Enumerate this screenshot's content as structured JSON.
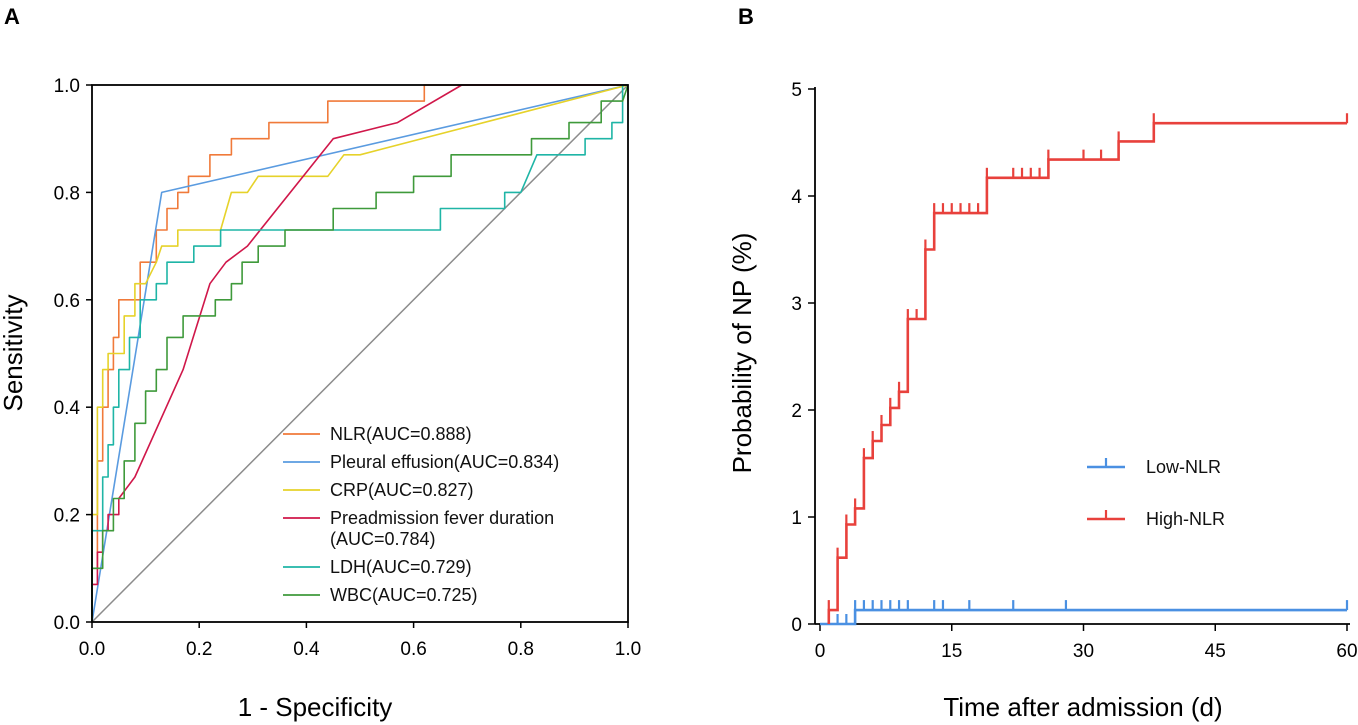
{
  "chart_data": [
    {
      "panel": "A",
      "type": "line",
      "xlabel": "1 -  Specificity",
      "ylabel": "Sensitivity",
      "xlim": [
        0,
        1
      ],
      "ylim": [
        0,
        1
      ],
      "xticks": [
        "0.0",
        "0.2",
        "0.4",
        "0.6",
        "0.8",
        "1.0"
      ],
      "yticks": [
        "0.0",
        "0.2",
        "0.4",
        "0.6",
        "0.8",
        "1.0"
      ],
      "legend_position": "bottom-right",
      "reference_line": {
        "from": [
          0,
          0
        ],
        "to": [
          1,
          1
        ],
        "color": "#8c8c8c"
      },
      "series": [
        {
          "name": "NLR(AUC=0.888)",
          "color": "#f07a3a",
          "points": [
            [
              0,
              0
            ],
            [
              0,
              0.1
            ],
            [
              0.01,
              0.1
            ],
            [
              0.01,
              0.3
            ],
            [
              0.02,
              0.3
            ],
            [
              0.02,
              0.4
            ],
            [
              0.03,
              0.4
            ],
            [
              0.03,
              0.47
            ],
            [
              0.04,
              0.47
            ],
            [
              0.04,
              0.53
            ],
            [
              0.05,
              0.53
            ],
            [
              0.05,
              0.6
            ],
            [
              0.09,
              0.6
            ],
            [
              0.09,
              0.67
            ],
            [
              0.12,
              0.67
            ],
            [
              0.12,
              0.73
            ],
            [
              0.14,
              0.73
            ],
            [
              0.14,
              0.77
            ],
            [
              0.16,
              0.77
            ],
            [
              0.16,
              0.8
            ],
            [
              0.18,
              0.8
            ],
            [
              0.18,
              0.83
            ],
            [
              0.22,
              0.83
            ],
            [
              0.22,
              0.87
            ],
            [
              0.26,
              0.87
            ],
            [
              0.26,
              0.9
            ],
            [
              0.33,
              0.9
            ],
            [
              0.33,
              0.93
            ],
            [
              0.44,
              0.93
            ],
            [
              0.44,
              0.97
            ],
            [
              0.62,
              0.97
            ],
            [
              0.62,
              1.0
            ],
            [
              0.72,
              1.0
            ],
            [
              0.72,
              1.0
            ],
            [
              1,
              1
            ]
          ]
        },
        {
          "name": "Pleural effusion(AUC=0.834)",
          "color": "#5a9be0",
          "points": [
            [
              0,
              0
            ],
            [
              0.13,
              0.8
            ],
            [
              1,
              1
            ]
          ]
        },
        {
          "name": "CRP(AUC=0.827)",
          "color": "#e6d22a",
          "points": [
            [
              0,
              0
            ],
            [
              0,
              0.2
            ],
            [
              0.01,
              0.2
            ],
            [
              0.01,
              0.4
            ],
            [
              0.02,
              0.4
            ],
            [
              0.02,
              0.47
            ],
            [
              0.03,
              0.47
            ],
            [
              0.03,
              0.5
            ],
            [
              0.06,
              0.5
            ],
            [
              0.06,
              0.57
            ],
            [
              0.08,
              0.57
            ],
            [
              0.08,
              0.63
            ],
            [
              0.1,
              0.63
            ],
            [
              0.12,
              0.67
            ],
            [
              0.13,
              0.7
            ],
            [
              0.16,
              0.7
            ],
            [
              0.16,
              0.73
            ],
            [
              0.2,
              0.73
            ],
            [
              0.24,
              0.73
            ],
            [
              0.26,
              0.8
            ],
            [
              0.29,
              0.8
            ],
            [
              0.31,
              0.83
            ],
            [
              0.44,
              0.83
            ],
            [
              0.47,
              0.87
            ],
            [
              0.5,
              0.87
            ],
            [
              1,
              1
            ]
          ]
        },
        {
          "name": "Preadmission fever duration\n(AUC=0.784)",
          "color": "#d0174a",
          "points": [
            [
              0,
              0
            ],
            [
              0,
              0.07
            ],
            [
              0.01,
              0.07
            ],
            [
              0.01,
              0.13
            ],
            [
              0.02,
              0.13
            ],
            [
              0.02,
              0.17
            ],
            [
              0.03,
              0.17
            ],
            [
              0.03,
              0.2
            ],
            [
              0.05,
              0.2
            ],
            [
              0.05,
              0.23
            ],
            [
              0.08,
              0.27
            ],
            [
              0.17,
              0.47
            ],
            [
              0.22,
              0.63
            ],
            [
              0.25,
              0.67
            ],
            [
              0.29,
              0.7
            ],
            [
              0.45,
              0.9
            ],
            [
              0.57,
              0.93
            ],
            [
              0.69,
              1.0
            ],
            [
              1,
              1
            ]
          ]
        },
        {
          "name": "LDH(AUC=0.729)",
          "color": "#1fb5a6",
          "points": [
            [
              0,
              0
            ],
            [
              0,
              0.17
            ],
            [
              0.02,
              0.17
            ],
            [
              0.02,
              0.27
            ],
            [
              0.03,
              0.27
            ],
            [
              0.03,
              0.33
            ],
            [
              0.04,
              0.33
            ],
            [
              0.04,
              0.4
            ],
            [
              0.05,
              0.4
            ],
            [
              0.05,
              0.47
            ],
            [
              0.07,
              0.47
            ],
            [
              0.07,
              0.53
            ],
            [
              0.09,
              0.53
            ],
            [
              0.09,
              0.6
            ],
            [
              0.12,
              0.6
            ],
            [
              0.12,
              0.63
            ],
            [
              0.14,
              0.63
            ],
            [
              0.14,
              0.67
            ],
            [
              0.19,
              0.67
            ],
            [
              0.19,
              0.7
            ],
            [
              0.24,
              0.7
            ],
            [
              0.24,
              0.73
            ],
            [
              0.65,
              0.73
            ],
            [
              0.65,
              0.77
            ],
            [
              0.77,
              0.77
            ],
            [
              0.77,
              0.8
            ],
            [
              0.8,
              0.8
            ],
            [
              0.83,
              0.87
            ],
            [
              0.92,
              0.87
            ],
            [
              0.92,
              0.9
            ],
            [
              0.97,
              0.9
            ],
            [
              0.97,
              0.93
            ],
            [
              0.99,
              0.93
            ],
            [
              0.99,
              1.0
            ],
            [
              1,
              1
            ]
          ]
        },
        {
          "name": "WBC(AUC=0.725)",
          "color": "#3f9a3b",
          "points": [
            [
              0,
              0
            ],
            [
              0,
              0.1
            ],
            [
              0.02,
              0.1
            ],
            [
              0.02,
              0.17
            ],
            [
              0.04,
              0.17
            ],
            [
              0.04,
              0.23
            ],
            [
              0.06,
              0.23
            ],
            [
              0.06,
              0.3
            ],
            [
              0.08,
              0.3
            ],
            [
              0.08,
              0.37
            ],
            [
              0.1,
              0.37
            ],
            [
              0.1,
              0.43
            ],
            [
              0.12,
              0.43
            ],
            [
              0.12,
              0.47
            ],
            [
              0.14,
              0.47
            ],
            [
              0.14,
              0.53
            ],
            [
              0.17,
              0.53
            ],
            [
              0.17,
              0.57
            ],
            [
              0.23,
              0.57
            ],
            [
              0.23,
              0.6
            ],
            [
              0.26,
              0.6
            ],
            [
              0.26,
              0.63
            ],
            [
              0.28,
              0.63
            ],
            [
              0.28,
              0.67
            ],
            [
              0.31,
              0.67
            ],
            [
              0.31,
              0.7
            ],
            [
              0.36,
              0.7
            ],
            [
              0.36,
              0.73
            ],
            [
              0.45,
              0.73
            ],
            [
              0.45,
              0.77
            ],
            [
              0.53,
              0.77
            ],
            [
              0.53,
              0.8
            ],
            [
              0.6,
              0.8
            ],
            [
              0.6,
              0.83
            ],
            [
              0.67,
              0.83
            ],
            [
              0.67,
              0.87
            ],
            [
              0.82,
              0.87
            ],
            [
              0.82,
              0.9
            ],
            [
              0.89,
              0.9
            ],
            [
              0.89,
              0.93
            ],
            [
              0.95,
              0.93
            ],
            [
              0.95,
              0.97
            ],
            [
              0.99,
              0.97
            ],
            [
              1,
              1
            ]
          ]
        }
      ]
    },
    {
      "panel": "B",
      "type": "line",
      "xlabel": "Time after admission (d)",
      "ylabel": "Probability of NP (%)",
      "xlim": [
        0,
        60
      ],
      "ylim": [
        0,
        5
      ],
      "xticks": [
        "0",
        "15",
        "30",
        "45",
        "60"
      ],
      "yticks": [
        "0",
        "1",
        "2",
        "3",
        "4",
        "5"
      ],
      "legend_position": "center-right",
      "series": [
        {
          "name": "Low-NLR",
          "color": "#4a90e2",
          "steps": [
            [
              0,
              0
            ],
            [
              4,
              0
            ],
            [
              4,
              0.13
            ],
            [
              60,
              0.13
            ]
          ],
          "censor": [
            [
              2,
              0
            ],
            [
              3,
              0
            ],
            [
              4,
              0.13
            ],
            [
              5,
              0.13
            ],
            [
              6,
              0.13
            ],
            [
              7,
              0.13
            ],
            [
              8,
              0.13
            ],
            [
              9,
              0.13
            ],
            [
              10,
              0.13
            ],
            [
              13,
              0.13
            ],
            [
              14,
              0.13
            ],
            [
              17,
              0.13
            ],
            [
              22,
              0.13
            ],
            [
              28,
              0.13
            ],
            [
              60,
              0.13
            ]
          ]
        },
        {
          "name": "High-NLR",
          "color": "#e8413c",
          "steps": [
            [
              1,
              0
            ],
            [
              1,
              0.13
            ],
            [
              2,
              0.13
            ],
            [
              2,
              0.62
            ],
            [
              3,
              0.62
            ],
            [
              3,
              0.93
            ],
            [
              4,
              0.93
            ],
            [
              4,
              1.08
            ],
            [
              5,
              1.08
            ],
            [
              5,
              1.55
            ],
            [
              6,
              1.55
            ],
            [
              6,
              1.71
            ],
            [
              7,
              1.71
            ],
            [
              7,
              1.86
            ],
            [
              8,
              1.86
            ],
            [
              8,
              2.02
            ],
            [
              9,
              2.02
            ],
            [
              9,
              2.17
            ],
            [
              10,
              2.17
            ],
            [
              10,
              2.85
            ],
            [
              12,
              2.85
            ],
            [
              12,
              3.5
            ],
            [
              13,
              3.5
            ],
            [
              13,
              3.84
            ],
            [
              19,
              3.84
            ],
            [
              19,
              4.17
            ],
            [
              26,
              4.17
            ],
            [
              26,
              4.34
            ],
            [
              34,
              4.34
            ],
            [
              34,
              4.51
            ],
            [
              38,
              4.51
            ],
            [
              38,
              4.68
            ],
            [
              60,
              4.68
            ]
          ],
          "censor": [
            [
              1,
              0.13
            ],
            [
              2,
              0.62
            ],
            [
              3,
              0.93
            ],
            [
              4,
              1.08
            ],
            [
              5,
              1.55
            ],
            [
              6,
              1.71
            ],
            [
              7,
              1.86
            ],
            [
              8,
              2.02
            ],
            [
              9,
              2.17
            ],
            [
              10,
              2.85
            ],
            [
              11,
              2.85
            ],
            [
              12,
              3.5
            ],
            [
              13,
              3.84
            ],
            [
              14,
              3.84
            ],
            [
              15,
              3.84
            ],
            [
              16,
              3.84
            ],
            [
              17,
              3.84
            ],
            [
              18,
              3.84
            ],
            [
              19,
              4.17
            ],
            [
              22,
              4.17
            ],
            [
              23,
              4.17
            ],
            [
              24,
              4.17
            ],
            [
              25,
              4.17
            ],
            [
              26,
              4.34
            ],
            [
              30,
              4.34
            ],
            [
              32,
              4.34
            ],
            [
              34,
              4.51
            ],
            [
              38,
              4.68
            ],
            [
              60,
              4.68
            ]
          ]
        }
      ]
    }
  ]
}
